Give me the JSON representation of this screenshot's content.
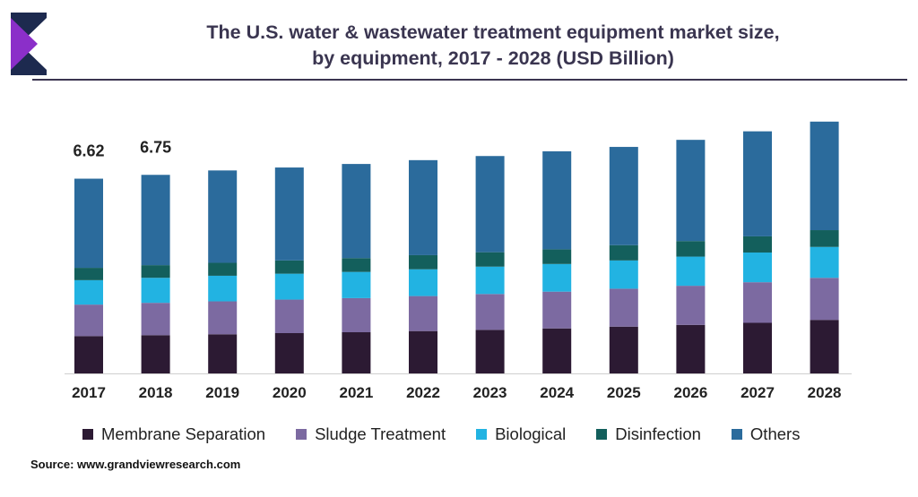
{
  "title_line1": "The U.S. water & wastewater treatment equipment market size,",
  "title_line2": "by equipment, 2017 - 2028 (USD Billion)",
  "source": "Source: www.grandviewresearch.com",
  "colors": {
    "title": "#3a3550",
    "membrane": "#2c1a33",
    "sludge": "#7c6aa1",
    "biological": "#22b3e2",
    "disinfection": "#135f5c",
    "others": "#2b6b9c",
    "logo_dark": "#1d2a4f",
    "logo_accent": "#8b2fc9"
  },
  "chart_data": {
    "type": "bar",
    "stacked": true,
    "categories": [
      "2017",
      "2018",
      "2019",
      "2020",
      "2021",
      "2022",
      "2023",
      "2024",
      "2025",
      "2026",
      "2027",
      "2028"
    ],
    "series": [
      {
        "name": "Membrane Separation",
        "values": [
          1.27,
          1.3,
          1.33,
          1.37,
          1.4,
          1.44,
          1.48,
          1.53,
          1.59,
          1.65,
          1.72,
          1.82
        ]
      },
      {
        "name": "Sludge Treatment",
        "values": [
          1.07,
          1.1,
          1.12,
          1.14,
          1.16,
          1.19,
          1.22,
          1.25,
          1.29,
          1.33,
          1.38,
          1.43
        ]
      },
      {
        "name": "Biological",
        "values": [
          0.83,
          0.85,
          0.87,
          0.88,
          0.89,
          0.91,
          0.93,
          0.94,
          0.96,
          0.99,
          1.01,
          1.05
        ]
      },
      {
        "name": "Disinfection",
        "values": [
          0.42,
          0.43,
          0.44,
          0.45,
          0.47,
          0.48,
          0.49,
          0.5,
          0.52,
          0.53,
          0.55,
          0.57
        ]
      },
      {
        "name": "Others",
        "values": [
          3.03,
          3.07,
          3.14,
          3.16,
          3.2,
          3.23,
          3.27,
          3.33,
          3.34,
          3.44,
          3.57,
          3.69
        ]
      }
    ],
    "data_labels": [
      {
        "category": "2017",
        "text": "6.62"
      },
      {
        "category": "2018",
        "text": "6.75"
      }
    ],
    "ylim": [
      0,
      8.7
    ],
    "grid": false,
    "legend": "bottom"
  }
}
